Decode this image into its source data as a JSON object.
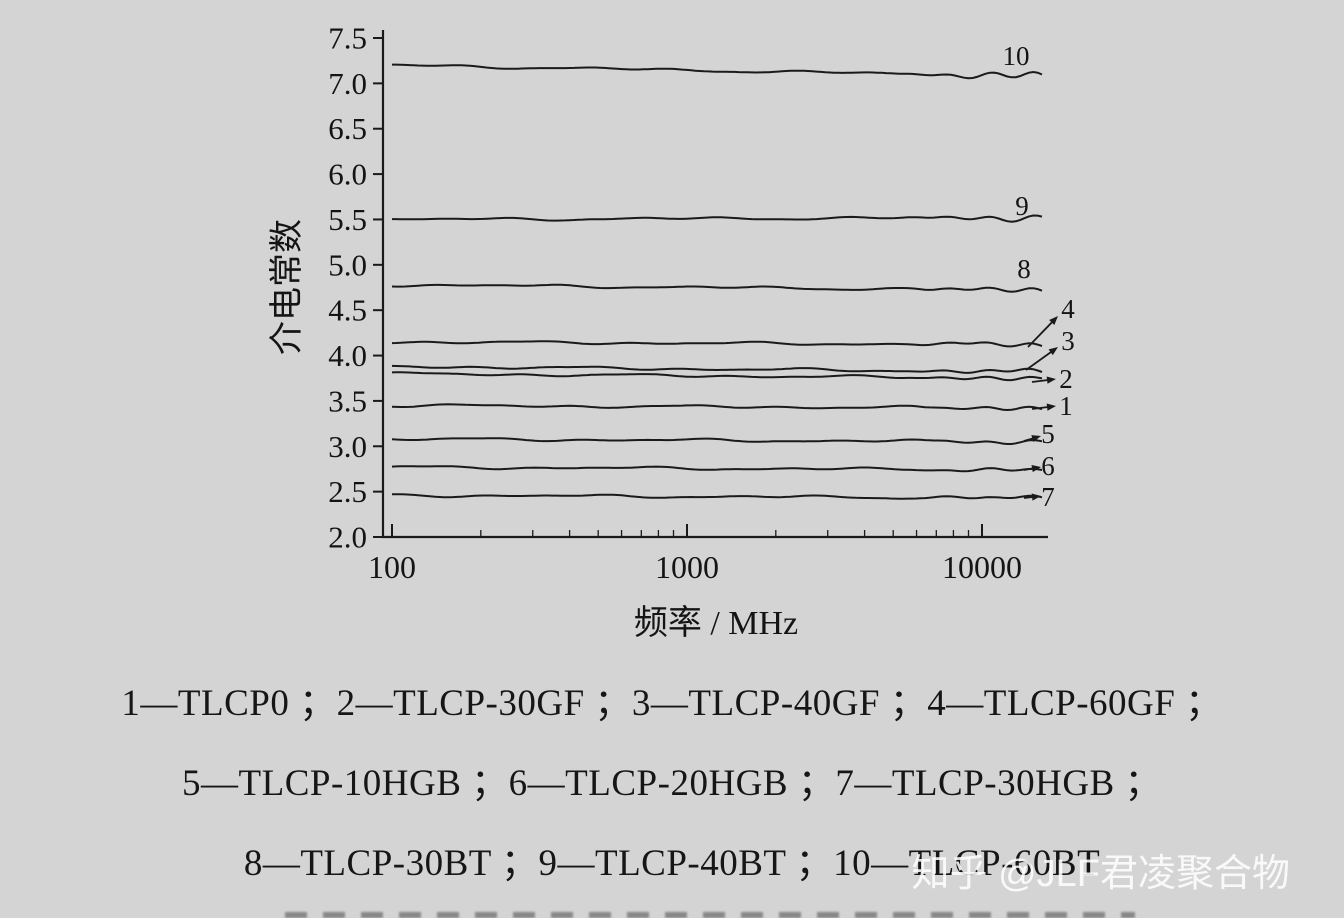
{
  "page": {
    "background": "#d4d4d4",
    "watermark": "知乎 @JLF君凌聚合物"
  },
  "chart_data": {
    "type": "line",
    "title": "",
    "xlabel": "频率 / MHz",
    "ylabel": "介电常数",
    "x_scale": "log",
    "xlim": [
      100,
      17000
    ],
    "ylim": [
      2.0,
      7.5
    ],
    "x_ticks": [
      100,
      1000,
      10000
    ],
    "x_tick_labels": [
      "100",
      "1000",
      "10000"
    ],
    "y_ticks": [
      2.0,
      2.5,
      3.0,
      3.5,
      4.0,
      4.5,
      5.0,
      5.5,
      6.0,
      6.5,
      7.0,
      7.5
    ],
    "y_tick_labels": [
      "2.0",
      "2.5",
      "3.0",
      "3.5",
      "4.0",
      "4.5",
      "5.0",
      "5.5",
      "6.0",
      "6.5",
      "7.0",
      "7.5"
    ],
    "grid": false,
    "legend_position": "below",
    "axis_color": "#1a1a1a",
    "line_color": "#1a1a1a",
    "series": [
      {
        "id": "10",
        "name": "TLCP-60BT",
        "start": 7.2,
        "end": 7.08
      },
      {
        "id": "9",
        "name": "TLCP-40BT",
        "start": 5.5,
        "end": 5.52
      },
      {
        "id": "8",
        "name": "TLCP-30BT",
        "start": 4.78,
        "end": 4.72
      },
      {
        "id": "4",
        "name": "TLCP-60GF",
        "start": 4.15,
        "end": 4.12
      },
      {
        "id": "3",
        "name": "TLCP-40GF",
        "start": 3.88,
        "end": 3.82
      },
      {
        "id": "2",
        "name": "TLCP-30GF",
        "start": 3.8,
        "end": 3.75
      },
      {
        "id": "1",
        "name": "TLCP0",
        "start": 3.45,
        "end": 3.42
      },
      {
        "id": "5",
        "name": "TLCP-10HGB",
        "start": 3.08,
        "end": 3.05
      },
      {
        "id": "6",
        "name": "TLCP-20HGB",
        "start": 2.77,
        "end": 2.74
      },
      {
        "id": "7",
        "name": "TLCP-30HGB",
        "start": 2.46,
        "end": 2.43
      }
    ]
  },
  "legend": {
    "line1": "1—TLCP0 ；2—TLCP-30GF ；3—TLCP-40GF ；4—TLCP-60GF ；",
    "line2": "5—TLCP-10HGB ；6—TLCP-20HGB ；7—TLCP-30HGB ；",
    "line3": "8—TLCP-30BT ；9—TLCP-40BT ；10—TLCP-60BT"
  }
}
